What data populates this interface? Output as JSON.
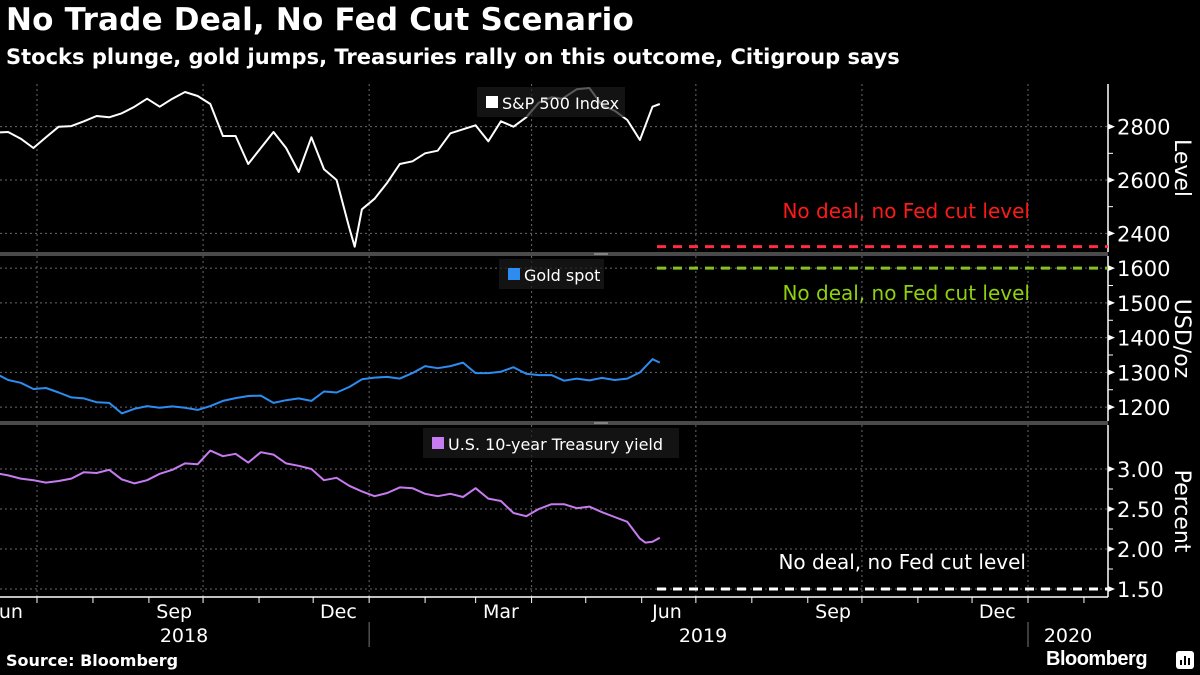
{
  "header": {
    "title": "No Trade Deal, No Fed Cut Scenario",
    "subtitle": "Stocks plunge, gold jumps, Treasuries rally on this outcome, Citigroup says"
  },
  "footer": {
    "source": "Source: Bloomberg",
    "brand": "Bloomberg"
  },
  "chart_data": [
    {
      "type": "line",
      "title": "S&P 500 Index",
      "ylabel": "Level",
      "ylim": [
        2330,
        2960
      ],
      "yticks": [
        "2400",
        "2600",
        "2800"
      ],
      "grid": true,
      "legend": "top-center",
      "color": "#ffffff",
      "reference_line": {
        "label": "No deal, no Fed cut level",
        "value": 2350,
        "color": "#ff2b45",
        "label_color": "#ff1a1a"
      },
      "series": [
        {
          "name": "S&P 500 Index",
          "dates": [
            "2018-05-11",
            "2018-05-18",
            "2018-05-25",
            "2018-06-01",
            "2018-06-08",
            "2018-06-15",
            "2018-06-22",
            "2018-06-29",
            "2018-07-06",
            "2018-07-13",
            "2018-07-20",
            "2018-07-27",
            "2018-08-03",
            "2018-08-10",
            "2018-08-17",
            "2018-08-24",
            "2018-08-31",
            "2018-09-07",
            "2018-09-14",
            "2018-09-21",
            "2018-09-28",
            "2018-10-05",
            "2018-10-12",
            "2018-10-19",
            "2018-10-26",
            "2018-11-02",
            "2018-11-09",
            "2018-11-16",
            "2018-11-23",
            "2018-11-30",
            "2018-12-07",
            "2018-12-14",
            "2018-12-21",
            "2018-12-24",
            "2018-12-28",
            "2019-01-04",
            "2019-01-11",
            "2019-01-18",
            "2019-01-25",
            "2019-02-01",
            "2019-02-08",
            "2019-02-15",
            "2019-02-22",
            "2019-03-01",
            "2019-03-08",
            "2019-03-15",
            "2019-03-22",
            "2019-03-29",
            "2019-04-05",
            "2019-04-12",
            "2019-04-18",
            "2019-04-26",
            "2019-05-03",
            "2019-05-10",
            "2019-05-17",
            "2019-05-24",
            "2019-05-31",
            "2019-06-07",
            "2019-06-11"
          ],
          "values": [
            2728,
            2720,
            2722,
            2705,
            2778,
            2780,
            2755,
            2720,
            2760,
            2800,
            2802,
            2820,
            2840,
            2835,
            2850,
            2875,
            2905,
            2875,
            2905,
            2930,
            2915,
            2885,
            2765,
            2765,
            2660,
            2720,
            2780,
            2720,
            2630,
            2760,
            2640,
            2600,
            2420,
            2350,
            2490,
            2530,
            2590,
            2660,
            2670,
            2700,
            2710,
            2775,
            2790,
            2805,
            2745,
            2820,
            2800,
            2835,
            2890,
            2910,
            2905,
            2940,
            2945,
            2880,
            2860,
            2825,
            2750,
            2875,
            2885
          ]
        }
      ],
      "xticks": [
        "Jun",
        "Sep",
        "Dec",
        "Mar",
        "Jun",
        "Sep",
        "Dec"
      ],
      "year_labels": [
        "2018",
        "2019",
        "2020"
      ]
    },
    {
      "type": "line",
      "title": "Gold spot",
      "ylabel": "USD/oz",
      "ylim": [
        1160,
        1635
      ],
      "yticks": [
        "1200",
        "1300",
        "1400",
        "1500",
        "1600"
      ],
      "grid": true,
      "legend": "top-center",
      "color": "#2d8cf0",
      "reference_line": {
        "label": "No deal, no Fed cut level",
        "value": 1600,
        "color": "#86c21e",
        "label_color": "#8fd10f"
      },
      "series": [
        {
          "name": "Gold spot",
          "dates": [
            "2018-05-11",
            "2018-05-18",
            "2018-05-25",
            "2018-06-01",
            "2018-06-08",
            "2018-06-15",
            "2018-06-22",
            "2018-06-29",
            "2018-07-06",
            "2018-07-13",
            "2018-07-20",
            "2018-07-27",
            "2018-08-03",
            "2018-08-10",
            "2018-08-17",
            "2018-08-24",
            "2018-08-31",
            "2018-09-07",
            "2018-09-14",
            "2018-09-21",
            "2018-09-28",
            "2018-10-05",
            "2018-10-12",
            "2018-10-19",
            "2018-10-26",
            "2018-11-02",
            "2018-11-09",
            "2018-11-16",
            "2018-11-23",
            "2018-11-30",
            "2018-12-07",
            "2018-12-14",
            "2018-12-21",
            "2018-12-28",
            "2019-01-04",
            "2019-01-11",
            "2019-01-18",
            "2019-01-25",
            "2019-02-01",
            "2019-02-08",
            "2019-02-15",
            "2019-02-22",
            "2019-03-01",
            "2019-03-08",
            "2019-03-15",
            "2019-03-22",
            "2019-03-29",
            "2019-04-05",
            "2019-04-12",
            "2019-04-19",
            "2019-04-26",
            "2019-05-03",
            "2019-05-10",
            "2019-05-17",
            "2019-05-24",
            "2019-05-31",
            "2019-06-07",
            "2019-06-11"
          ],
          "values": [
            1318,
            1292,
            1300,
            1295,
            1297,
            1278,
            1270,
            1252,
            1255,
            1242,
            1228,
            1225,
            1214,
            1212,
            1182,
            1195,
            1203,
            1198,
            1202,
            1198,
            1192,
            1203,
            1218,
            1226,
            1232,
            1233,
            1212,
            1220,
            1225,
            1218,
            1245,
            1242,
            1258,
            1280,
            1285,
            1287,
            1282,
            1298,
            1318,
            1312,
            1318,
            1328,
            1298,
            1298,
            1302,
            1315,
            1296,
            1292,
            1292,
            1276,
            1282,
            1277,
            1284,
            1278,
            1282,
            1300,
            1338,
            1328
          ]
        }
      ]
    },
    {
      "type": "line",
      "title": "U.S. 10-year Treasury yield",
      "ylabel": "Percent",
      "ylim": [
        1.4,
        3.55
      ],
      "yticks": [
        "1.50",
        "2.00",
        "2.50",
        "3.00"
      ],
      "grid": true,
      "legend": "top-center",
      "color": "#c77bf0",
      "reference_line": {
        "label": "No deal, no Fed cut level",
        "value": 1.5,
        "color": "#ffffff",
        "label_color": "#ffffff"
      },
      "series": [
        {
          "name": "U.S. 10-year Treasury yield",
          "dates": [
            "2018-05-11",
            "2018-05-18",
            "2018-05-25",
            "2018-06-01",
            "2018-06-08",
            "2018-06-15",
            "2018-06-22",
            "2018-06-29",
            "2018-07-06",
            "2018-07-13",
            "2018-07-20",
            "2018-07-27",
            "2018-08-03",
            "2018-08-10",
            "2018-08-17",
            "2018-08-24",
            "2018-08-31",
            "2018-09-07",
            "2018-09-14",
            "2018-09-21",
            "2018-09-28",
            "2018-10-05",
            "2018-10-12",
            "2018-10-19",
            "2018-10-26",
            "2018-11-02",
            "2018-11-09",
            "2018-11-16",
            "2018-11-23",
            "2018-11-30",
            "2018-12-07",
            "2018-12-14",
            "2018-12-21",
            "2018-12-28",
            "2019-01-04",
            "2019-01-11",
            "2019-01-18",
            "2019-01-25",
            "2019-02-01",
            "2019-02-08",
            "2019-02-15",
            "2019-02-22",
            "2019-03-01",
            "2019-03-08",
            "2019-03-15",
            "2019-03-22",
            "2019-03-29",
            "2019-04-05",
            "2019-04-12",
            "2019-04-19",
            "2019-04-26",
            "2019-05-03",
            "2019-05-10",
            "2019-05-17",
            "2019-05-24",
            "2019-05-31",
            "2019-06-03",
            "2019-06-07",
            "2019-06-11"
          ],
          "values": [
            2.97,
            2.94,
            2.93,
            2.9,
            2.95,
            2.92,
            2.88,
            2.86,
            2.83,
            2.85,
            2.88,
            2.96,
            2.95,
            2.99,
            2.87,
            2.82,
            2.86,
            2.94,
            2.99,
            3.07,
            3.06,
            3.23,
            3.16,
            3.19,
            3.08,
            3.21,
            3.18,
            3.07,
            3.04,
            3.0,
            2.86,
            2.89,
            2.79,
            2.72,
            2.66,
            2.7,
            2.77,
            2.76,
            2.69,
            2.66,
            2.69,
            2.65,
            2.76,
            2.63,
            2.6,
            2.45,
            2.41,
            2.5,
            2.56,
            2.56,
            2.51,
            2.53,
            2.46,
            2.4,
            2.34,
            2.13,
            2.08,
            2.09,
            2.14
          ]
        }
      ]
    }
  ]
}
